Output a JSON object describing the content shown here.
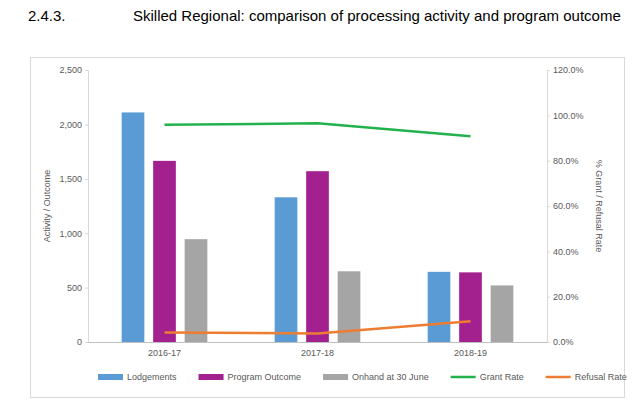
{
  "chart_data": {
    "type": "bar",
    "title": "Skilled Regional: comparison of processing activity and program outcome",
    "annotations": [
      "2.4.3."
    ],
    "y_label": "Activity / Outcome",
    "y2_label": "% Grant / Refusal Rate",
    "categories": [
      "2016-17",
      "2017-18",
      "2018-19"
    ],
    "ylim": [
      0,
      2500
    ],
    "yticks": [
      0,
      500,
      {
        "value": 1000,
        "label": "1,000"
      },
      {
        "value": 1500,
        "label": "1,500"
      },
      {
        "value": 2000,
        "label": "2,000"
      },
      {
        "value": 2500,
        "label": "2,500"
      }
    ],
    "y2lim": [
      0,
      120
    ],
    "y2ticks": [
      {
        "value": 0,
        "label": "0.0%"
      },
      {
        "value": 20,
        "label": "20.0%"
      },
      {
        "value": 40,
        "label": "40.0%"
      },
      {
        "value": 60,
        "label": "60.0%"
      },
      {
        "value": 80,
        "label": "80.0%"
      },
      {
        "value": 100,
        "label": "100.0%"
      },
      {
        "value": 120,
        "label": "120.0%"
      }
    ],
    "grid": false,
    "legend": "bottom",
    "series": [
      {
        "name": "Lodgements",
        "type": "bar",
        "color": "#5b9bd5",
        "values": [
          2110,
          1330,
          645
        ]
      },
      {
        "name": "Program Outcome",
        "type": "bar",
        "color": "#a3208f",
        "values": [
          1665,
          1570,
          640
        ]
      },
      {
        "name": "Onhand at 30 June",
        "type": "bar",
        "color": "#a5a5a5",
        "values": [
          945,
          650,
          520
        ]
      },
      {
        "name": "Grant Rate",
        "type": "line",
        "axis": "y2",
        "color": "#22b24c",
        "values": [
          95.8,
          96.5,
          90.8
        ]
      },
      {
        "name": "Refusal Rate",
        "type": "line",
        "axis": "y2",
        "color": "#ed7d31",
        "values": [
          4.2,
          3.8,
          9.2
        ]
      }
    ]
  }
}
